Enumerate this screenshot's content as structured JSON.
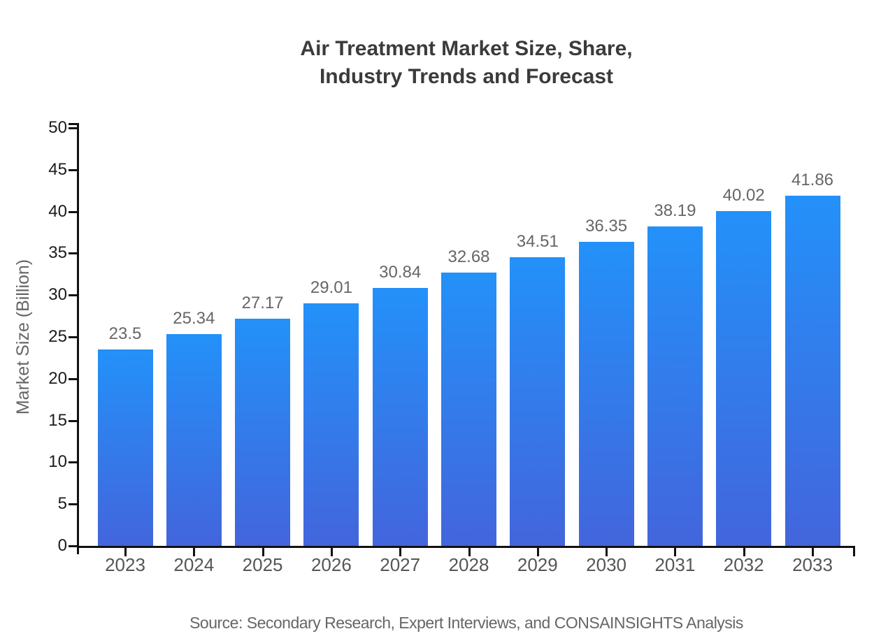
{
  "header": {
    "title": "Air Treatment Market Size, Share,\nIndustry Trends and Forecast"
  },
  "footer": {
    "source": "Source: Secondary Research, Expert Interviews, and CONSAINSIGHTS Analysis"
  },
  "chart_data": {
    "type": "bar",
    "title": "Air Treatment Market Size, Share, Industry Trends and Forecast",
    "xlabel": "",
    "ylabel": "Market Size (Billion)",
    "categories": [
      "2023",
      "2024",
      "2025",
      "2026",
      "2027",
      "2028",
      "2029",
      "2030",
      "2031",
      "2032",
      "2033"
    ],
    "values": [
      23.5,
      25.34,
      27.17,
      29.01,
      30.84,
      32.68,
      34.51,
      36.35,
      38.19,
      40.02,
      41.86
    ],
    "value_labels": [
      "23.5",
      "25.34",
      "27.17",
      "29.01",
      "30.84",
      "32.68",
      "34.51",
      "36.35",
      "38.19",
      "40.02",
      "41.86"
    ],
    "ylim": [
      0,
      50
    ],
    "ytick_step": 5,
    "ytick_labels": [
      "0",
      "5",
      "10",
      "15",
      "20",
      "25",
      "30",
      "35",
      "40",
      "45",
      "50"
    ],
    "grid": false,
    "legend": "none"
  },
  "colors": {
    "background": "#ffffff",
    "title": "#3b3b3b",
    "axis": "#111111",
    "y_tick_label": "#1c1c1c",
    "x_tick_label": "#565656",
    "value_label": "#666666",
    "y_axis_title": "#666666",
    "source": "#666666",
    "bar_gradient_top": "#2391f9",
    "bar_gradient_bottom": "#4365dc"
  }
}
